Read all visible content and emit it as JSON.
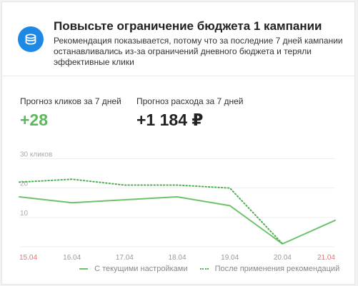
{
  "card": {
    "title": "Повысьте ограничение бюджета 1 кампании",
    "description": "Рекомендация показывается, потому что за последние 7 дней кампании останавливались из-за ограничений дневного бюджета и теряли эффективные клики",
    "icon": "coins-icon"
  },
  "metrics": {
    "clicks_label": "Прогноз кликов за 7 дней",
    "clicks_value": "+28",
    "spend_label": "Прогноз расхода за 7 дней",
    "spend_value": "+1 184 ₽"
  },
  "colors": {
    "accent": "#1e88e5",
    "positive": "#5cb85c",
    "weekend": "#e57373"
  },
  "chart_data": {
    "type": "line",
    "categories": [
      "15.04",
      "16.04",
      "17.04",
      "18.04",
      "19.04",
      "20.04",
      "21.04"
    ],
    "weekend_flags": [
      true,
      false,
      false,
      false,
      false,
      false,
      true
    ],
    "y_ticks": [
      "10",
      "20",
      "30 кликов"
    ],
    "ylim": [
      0,
      34
    ],
    "grid": true,
    "legend_position": "bottom",
    "series": [
      {
        "name": "С текущими настройками",
        "values": [
          17,
          15,
          16,
          17,
          14,
          1,
          9
        ],
        "style": "solid",
        "color": "#6cc36c"
      },
      {
        "name": "После применения рекомендаций",
        "values": [
          22,
          23,
          21,
          21,
          20,
          1,
          null
        ],
        "style": "dotted",
        "color": "#4caf50"
      }
    ]
  }
}
